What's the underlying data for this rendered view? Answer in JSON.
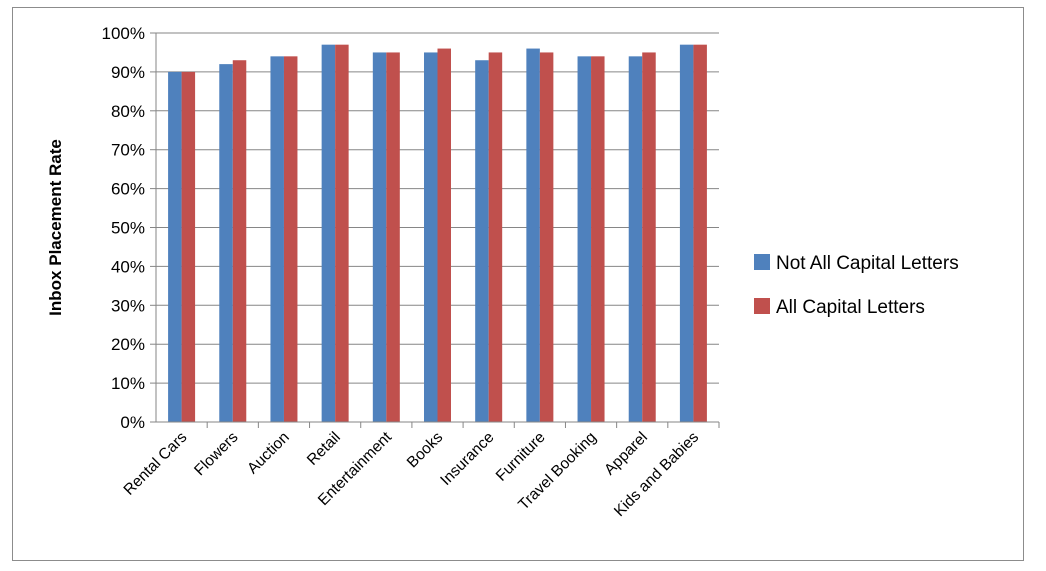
{
  "chart_data": {
    "type": "bar",
    "ylabel": "Inbox Placement Rate",
    "ylim": [
      0,
      100
    ],
    "yticks": [
      "0%",
      "10%",
      "20%",
      "30%",
      "40%",
      "50%",
      "60%",
      "70%",
      "80%",
      "90%",
      "100%"
    ],
    "grid": true,
    "legend_position": "right",
    "categories": [
      "Rental Cars",
      "Flowers",
      "Auction",
      "Retail",
      "Entertainment",
      "Books",
      "Insurance",
      "Furniture",
      "Travel Booking",
      "Apparel",
      "Kids and Babies"
    ],
    "series": [
      {
        "name": "Not All Capital Letters",
        "color": "#4f81bd",
        "values": [
          90,
          92,
          94,
          97,
          95,
          95,
          93,
          96,
          94,
          94,
          97
        ]
      },
      {
        "name": "All Capital Letters",
        "color": "#c0504d",
        "values": [
          90,
          93,
          94,
          97,
          95,
          96,
          95,
          95,
          94,
          95,
          97
        ]
      }
    ]
  }
}
